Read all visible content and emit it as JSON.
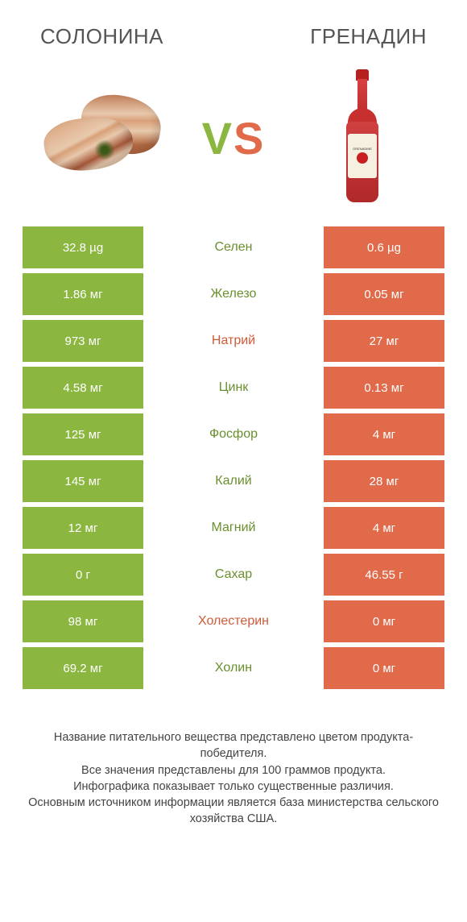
{
  "colors": {
    "green": "#8bb63f",
    "orange": "#e06a4a",
    "mid_green_text": "#6a8f2e",
    "mid_orange_text": "#d05a3a"
  },
  "header": {
    "left_title": "СОЛОНИНА",
    "right_title": "ГРЕНАДИН"
  },
  "vs": {
    "v": "V",
    "s": "S"
  },
  "bottle_label": "GRENADINE",
  "rows": [
    {
      "left": "32.8 µg",
      "mid": "Селен",
      "right": "0.6 µg",
      "winner": "left"
    },
    {
      "left": "1.86 мг",
      "mid": "Железо",
      "right": "0.05 мг",
      "winner": "left"
    },
    {
      "left": "973 мг",
      "mid": "Натрий",
      "right": "27 мг",
      "winner": "right"
    },
    {
      "left": "4.58 мг",
      "mid": "Цинк",
      "right": "0.13 мг",
      "winner": "left"
    },
    {
      "left": "125 мг",
      "mid": "Фосфор",
      "right": "4 мг",
      "winner": "left"
    },
    {
      "left": "145 мг",
      "mid": "Калий",
      "right": "28 мг",
      "winner": "left"
    },
    {
      "left": "12 мг",
      "mid": "Магний",
      "right": "4 мг",
      "winner": "left"
    },
    {
      "left": "0 г",
      "mid": "Сахар",
      "right": "46.55 г",
      "winner": "left"
    },
    {
      "left": "98 мг",
      "mid": "Холестерин",
      "right": "0 мг",
      "winner": "right"
    },
    {
      "left": "69.2 мг",
      "mid": "Холин",
      "right": "0 мг",
      "winner": "left"
    }
  ],
  "footer": {
    "line1": "Название питательного вещества представлено цветом продукта-победителя.",
    "line2": "Все значения представлены для 100 граммов продукта.",
    "line3": "Инфографика показывает только существенные различия.",
    "line4": "Основным источником информации является база министерства сельского хозяйства США."
  }
}
